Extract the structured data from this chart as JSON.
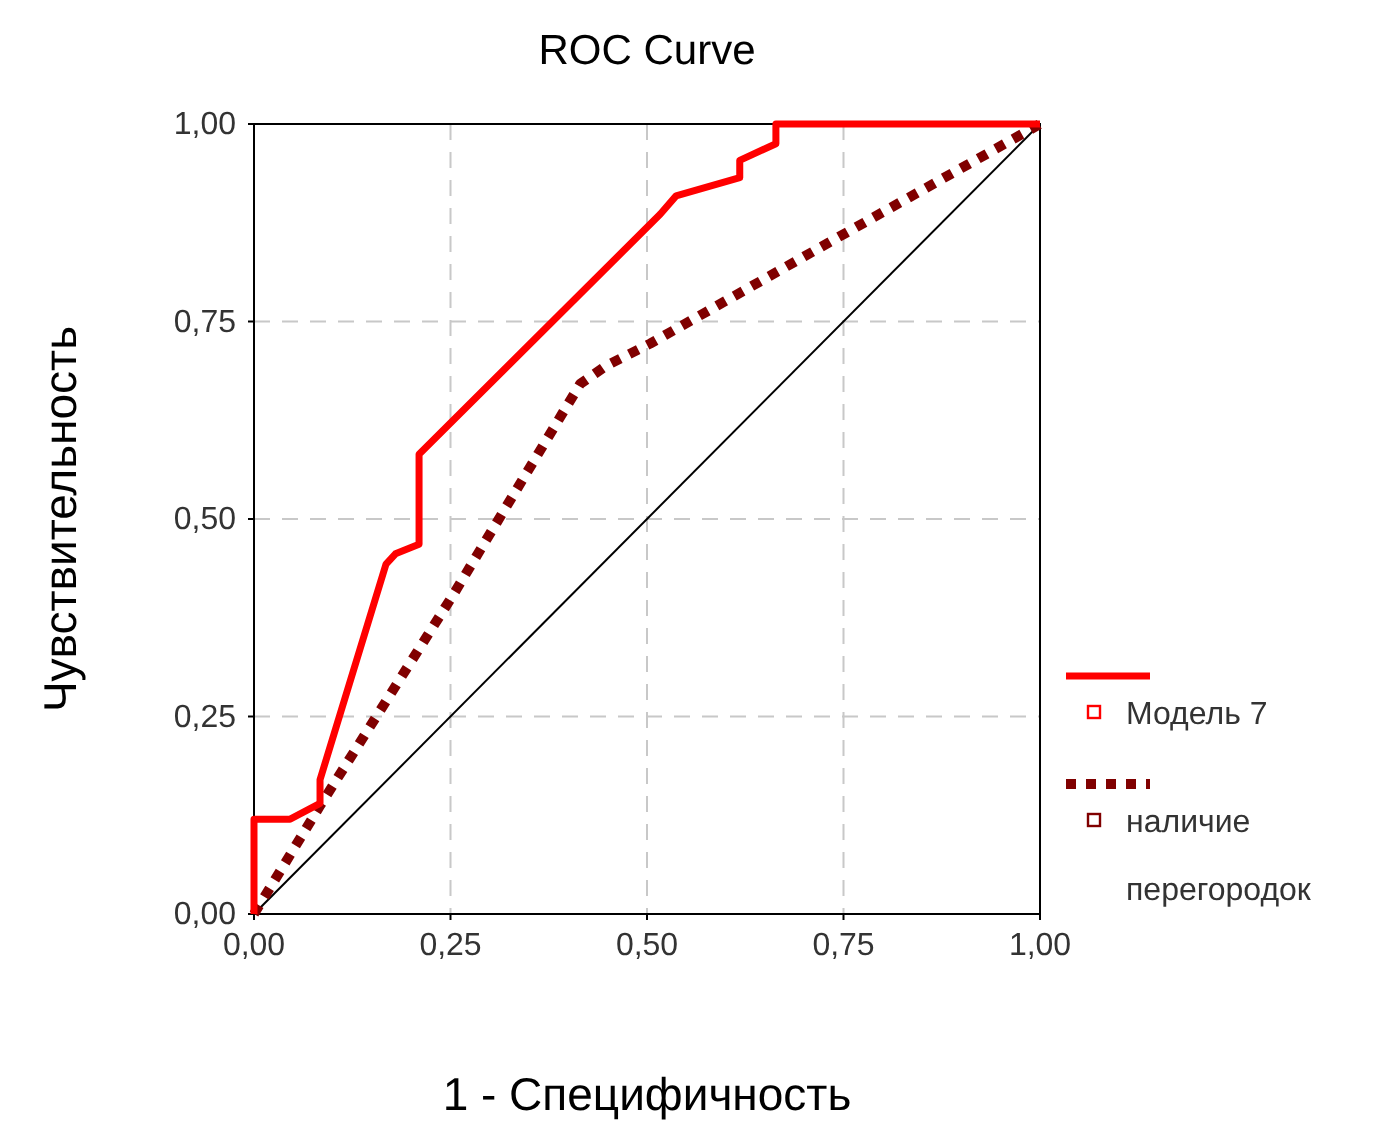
{
  "chart_data": {
    "type": "line",
    "title": "ROC Curve",
    "xlabel": "1 - Специфичность",
    "ylabel": "Чувствительность",
    "xlim": [
      0,
      1
    ],
    "ylim": [
      0,
      1
    ],
    "xticks": [
      {
        "value": 0,
        "label": "0,00"
      },
      {
        "value": 0.25,
        "label": "0,25"
      },
      {
        "value": 0.5,
        "label": "0,50"
      },
      {
        "value": 0.75,
        "label": "0,75"
      },
      {
        "value": 1,
        "label": "1,00"
      }
    ],
    "yticks": [
      {
        "value": 0,
        "label": "0,00"
      },
      {
        "value": 0.25,
        "label": "0,25"
      },
      {
        "value": 0.5,
        "label": "0,50"
      },
      {
        "value": 0.75,
        "label": "0,75"
      },
      {
        "value": 1,
        "label": "1,00"
      }
    ],
    "grid": true,
    "legend": "right",
    "marker": "none",
    "series": [
      {
        "name": "Модель 7",
        "color": "#ff0000",
        "line_style": "solid",
        "x": [
          0,
          0,
          0.046,
          0.084,
          0.084,
          0.168,
          0.18,
          0.21,
          0.21,
          0.517,
          0.537,
          0.618,
          0.618,
          0.664,
          0.664,
          1
        ],
        "values": [
          0,
          0.12,
          0.12,
          0.14,
          0.17,
          0.443,
          0.456,
          0.468,
          0.582,
          0.886,
          0.909,
          0.932,
          0.954,
          0.975,
          1,
          1
        ]
      },
      {
        "name": "наличие перегородок",
        "color": "#800000",
        "line_style": "dotted",
        "x": [
          0,
          0.084,
          0.254,
          0.415,
          0.448,
          0.504,
          0.751,
          1
        ],
        "values": [
          0,
          0.137,
          0.405,
          0.671,
          0.694,
          0.722,
          0.861,
          1
        ]
      },
      {
        "color": "#000000",
        "line_style": "solid",
        "x": [
          0,
          1
        ],
        "values": [
          0,
          1
        ]
      }
    ]
  }
}
